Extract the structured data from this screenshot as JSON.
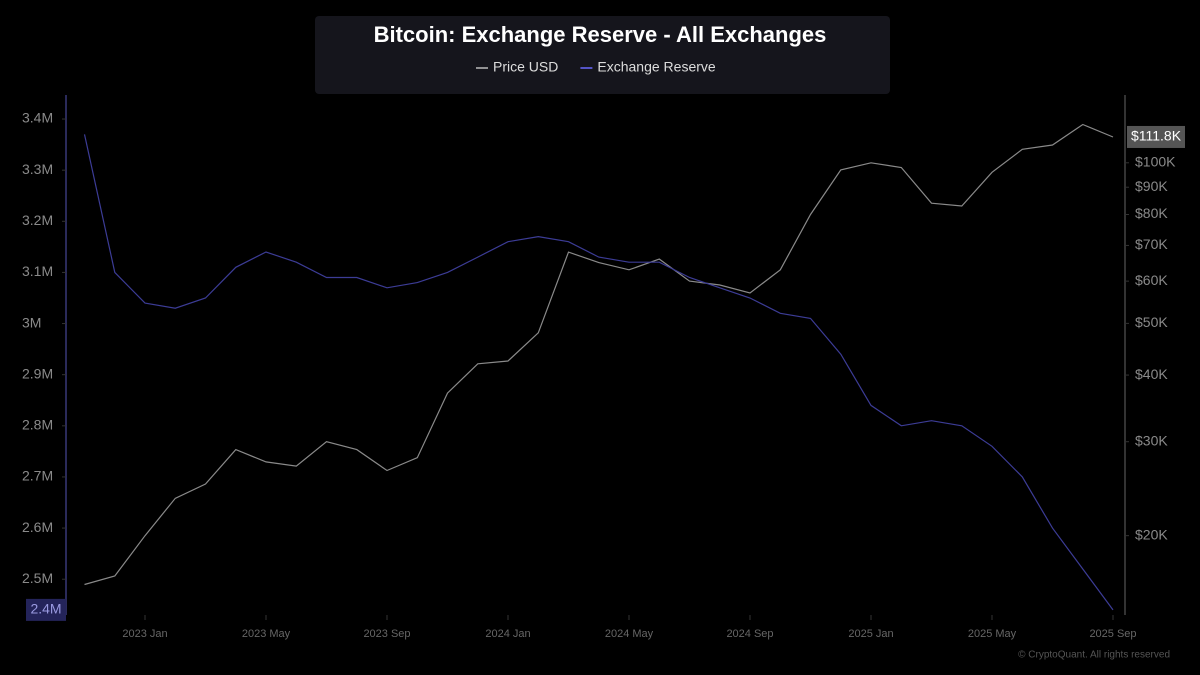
{
  "chart_data": {
    "type": "line",
    "title": "Bitcoin: Exchange Reserve - All Exchanges",
    "credit": "© CryptoQuant. All rights reserved",
    "x": [
      "2022-11",
      "2022-12",
      "2023-01",
      "2023-02",
      "2023-03",
      "2023-04",
      "2023-05",
      "2023-06",
      "2023-07",
      "2023-08",
      "2023-09",
      "2023-10",
      "2023-11",
      "2023-12",
      "2024-01",
      "2024-02",
      "2024-03",
      "2024-04",
      "2024-05",
      "2024-06",
      "2024-07",
      "2024-08",
      "2024-09",
      "2024-10",
      "2024-11",
      "2024-12",
      "2025-01",
      "2025-02",
      "2025-03",
      "2025-04",
      "2025-05",
      "2025-06",
      "2025-07",
      "2025-08",
      "2025-09"
    ],
    "xticks": [
      {
        "value": "2023-01",
        "label": "2023 Jan"
      },
      {
        "value": "2023-05",
        "label": "2023 May"
      },
      {
        "value": "2023-09",
        "label": "2023 Sep"
      },
      {
        "value": "2024-01",
        "label": "2024 Jan"
      },
      {
        "value": "2024-05",
        "label": "2024 May"
      },
      {
        "value": "2024-09",
        "label": "2024 Sep"
      },
      {
        "value": "2025-01",
        "label": "2025 Jan"
      },
      {
        "value": "2025-05",
        "label": "2025 May"
      },
      {
        "value": "2025-09",
        "label": "2025 Sep"
      }
    ],
    "ylim": [
      2430000,
      3447000
    ],
    "yticks": [
      {
        "value": 2500000,
        "label": "2.5M"
      },
      {
        "value": 2600000,
        "label": "2.6M"
      },
      {
        "value": 2700000,
        "label": "2.7M"
      },
      {
        "value": 2800000,
        "label": "2.8M"
      },
      {
        "value": 2900000,
        "label": "2.9M"
      },
      {
        "value": 3000000,
        "label": "3M"
      },
      {
        "value": 3100000,
        "label": "3.1M"
      },
      {
        "value": 3200000,
        "label": "3.2M"
      },
      {
        "value": 3300000,
        "label": "3.3M"
      },
      {
        "value": 3400000,
        "label": "3.4M"
      }
    ],
    "y2lim": [
      14200,
      134000
    ],
    "y2log": true,
    "y2ticks": [
      {
        "value": 20000,
        "label": "$20K"
      },
      {
        "value": 30000,
        "label": "$30K"
      },
      {
        "value": 40000,
        "label": "$40K"
      },
      {
        "value": 50000,
        "label": "$50K"
      },
      {
        "value": 60000,
        "label": "$60K"
      },
      {
        "value": 70000,
        "label": "$70K"
      },
      {
        "value": 80000,
        "label": "$80K"
      },
      {
        "value": 90000,
        "label": "$90K"
      },
      {
        "value": 100000,
        "label": "$100K"
      }
    ],
    "series": [
      {
        "name": "Price USD",
        "color": "#8a8a8a",
        "axis": "y2",
        "last_value_label": "$111.8K",
        "values": [
          16200,
          16800,
          20000,
          23500,
          25000,
          29000,
          27500,
          27000,
          30000,
          29000,
          26500,
          28000,
          37000,
          42000,
          42500,
          48000,
          68000,
          65000,
          63000,
          66000,
          60000,
          59000,
          57000,
          63000,
          80000,
          97000,
          100000,
          98000,
          84000,
          83000,
          96000,
          106000,
          108000,
          118000,
          111800
        ]
      },
      {
        "name": "Exchange Reserve",
        "color": "#3c3c96",
        "axis": "y",
        "last_value_label": "2.4M",
        "values": [
          3370000,
          3100000,
          3040000,
          3030000,
          3050000,
          3110000,
          3140000,
          3120000,
          3090000,
          3090000,
          3070000,
          3080000,
          3100000,
          3130000,
          3160000,
          3170000,
          3160000,
          3130000,
          3120000,
          3120000,
          3090000,
          3070000,
          3050000,
          3020000,
          3010000,
          2940000,
          2840000,
          2800000,
          2810000,
          2800000,
          2760000,
          2700000,
          2600000,
          2520000,
          2440000
        ]
      }
    ]
  }
}
